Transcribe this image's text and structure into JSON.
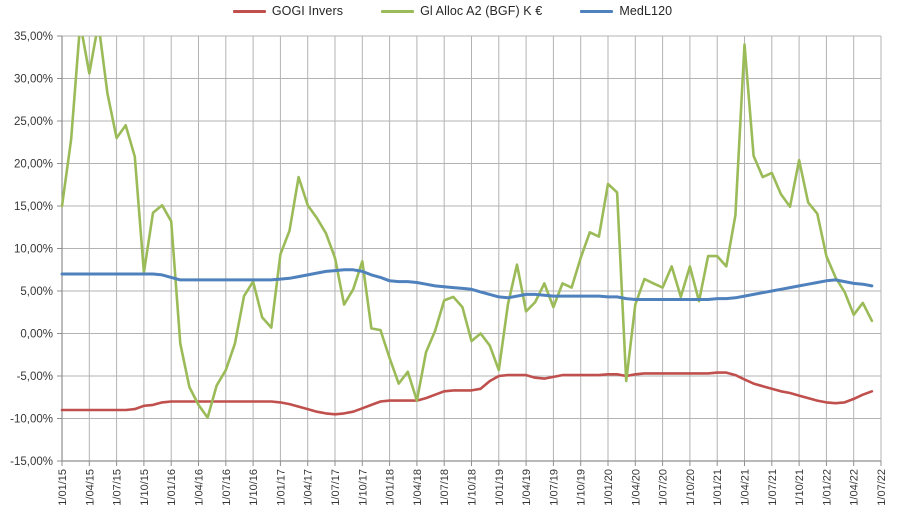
{
  "legend": [
    {
      "label": "GOGI Invers",
      "color": "#C0504D"
    },
    {
      "label": "Gl Alloc A2 (BGF) K €",
      "color": "#9BBB59"
    },
    {
      "label": "MedL120",
      "color": "#4F81BD"
    }
  ],
  "axis_style": {
    "grid_color": "#b3b3b3",
    "axis_color": "#8f8f8f",
    "tick_label_color": "#363636"
  },
  "chart_data": {
    "type": "line",
    "title": "",
    "xlabel": "",
    "ylabel": "",
    "grid": true,
    "legend_position": "top",
    "ylim": [
      -15,
      35
    ],
    "y_tick_step": 5,
    "y_tick_labels": [
      "35,00%",
      "30,00%",
      "25,00%",
      "20,00%",
      "15,00%",
      "10,00%",
      "5,00%",
      "0,00%",
      "-5,00%",
      "-10,00%",
      "-15,00%"
    ],
    "x_tick_labels": [
      "1/01/15",
      "1/04/15",
      "1/07/15",
      "1/10/15",
      "1/01/16",
      "1/04/16",
      "1/07/16",
      "1/10/16",
      "1/01/17",
      "1/04/17",
      "1/07/17",
      "1/10/17",
      "1/01/18",
      "1/04/18",
      "1/07/18",
      "1/10/18",
      "1/01/19",
      "1/04/19",
      "1/07/19",
      "1/10/19",
      "1/01/20",
      "1/04/20",
      "1/07/20",
      "1/10/20",
      "1/01/21",
      "1/04/21",
      "1/07/21",
      "1/10/21",
      "1/01/22",
      "1/04/22",
      "1/07/22"
    ],
    "x_unit": "month",
    "x_start": "1/01/15",
    "months_per_tick": 3,
    "series": [
      {
        "name": "GOGI Invers",
        "color": "#C0504D",
        "width": 2.6,
        "values": [
          -9.0,
          -9.0,
          -9.0,
          -9.0,
          -9.0,
          -9.0,
          -9.0,
          -9.0,
          -8.9,
          -8.5,
          -8.4,
          -8.1,
          -8.0,
          -8.0,
          -8.0,
          -8.0,
          -8.0,
          -8.0,
          -8.0,
          -8.0,
          -8.0,
          -8.0,
          -8.0,
          -8.0,
          -8.1,
          -8.3,
          -8.6,
          -8.9,
          -9.2,
          -9.4,
          -9.5,
          -9.4,
          -9.2,
          -8.8,
          -8.4,
          -8.0,
          -7.9,
          -7.9,
          -7.9,
          -7.9,
          -7.6,
          -7.2,
          -6.8,
          -6.7,
          -6.7,
          -6.7,
          -6.5,
          -5.6,
          -5.0,
          -4.9,
          -4.9,
          -4.9,
          -5.2,
          -5.3,
          -5.1,
          -4.9,
          -4.9,
          -4.9,
          -4.9,
          -4.9,
          -4.8,
          -4.8,
          -5.0,
          -4.8,
          -4.7,
          -4.7,
          -4.7,
          -4.7,
          -4.7,
          -4.7,
          -4.7,
          -4.7,
          -4.6,
          -4.6,
          -4.9,
          -5.4,
          -5.9,
          -6.2,
          -6.5,
          -6.8,
          -7.0,
          -7.3,
          -7.6,
          -7.9,
          -8.1,
          -8.2,
          -8.1,
          -7.7,
          -7.2,
          -6.8
        ]
      },
      {
        "name": "Gl Alloc A2 (BGF) K €",
        "color": "#9BBB59",
        "width": 2.6,
        "values": [
          15.0,
          22.8,
          36.5,
          30.6,
          36.5,
          28.2,
          23.0,
          24.5,
          20.8,
          7.2,
          14.2,
          15.1,
          13.2,
          -1.2,
          -6.3,
          -8.4,
          -9.9,
          -6.1,
          -4.3,
          -1.2,
          4.4,
          6.1,
          1.9,
          0.7,
          9.3,
          12.1,
          18.4,
          15.1,
          13.6,
          11.8,
          8.9,
          3.4,
          5.2,
          8.5,
          0.6,
          0.4,
          -2.9,
          -5.9,
          -4.5,
          -7.9,
          -2.2,
          0.3,
          3.9,
          4.3,
          3.1,
          -0.9,
          0.0,
          -1.4,
          -4.3,
          3.4,
          8.1,
          2.6,
          3.7,
          5.9,
          3.1,
          5.9,
          5.4,
          8.9,
          11.9,
          11.4,
          17.6,
          16.6,
          -5.6,
          3.4,
          6.4,
          5.9,
          5.4,
          7.9,
          4.3,
          7.9,
          3.8,
          9.1,
          9.1,
          7.9,
          13.9,
          34.0,
          20.9,
          18.4,
          18.9,
          16.4,
          14.9,
          20.4,
          15.4,
          14.1,
          9.1,
          6.6,
          4.9,
          2.2,
          3.6,
          1.5
        ]
      },
      {
        "name": "MedL120",
        "color": "#4F81BD",
        "width": 3,
        "values": [
          7.0,
          7.0,
          7.0,
          7.0,
          7.0,
          7.0,
          7.0,
          7.0,
          7.0,
          7.0,
          7.0,
          6.9,
          6.6,
          6.3,
          6.3,
          6.3,
          6.3,
          6.3,
          6.3,
          6.3,
          6.3,
          6.3,
          6.3,
          6.3,
          6.4,
          6.5,
          6.7,
          6.9,
          7.1,
          7.3,
          7.4,
          7.5,
          7.5,
          7.3,
          6.9,
          6.6,
          6.2,
          6.1,
          6.1,
          6.0,
          5.8,
          5.6,
          5.5,
          5.4,
          5.3,
          5.2,
          4.9,
          4.6,
          4.3,
          4.2,
          4.4,
          4.6,
          4.6,
          4.5,
          4.4,
          4.4,
          4.4,
          4.4,
          4.4,
          4.4,
          4.3,
          4.3,
          4.1,
          4.0,
          4.0,
          4.0,
          4.0,
          4.0,
          4.0,
          4.0,
          4.0,
          4.0,
          4.1,
          4.1,
          4.2,
          4.4,
          4.6,
          4.8,
          5.0,
          5.2,
          5.4,
          5.6,
          5.8,
          6.0,
          6.2,
          6.3,
          6.1,
          5.9,
          5.8,
          5.6
        ]
      }
    ]
  }
}
